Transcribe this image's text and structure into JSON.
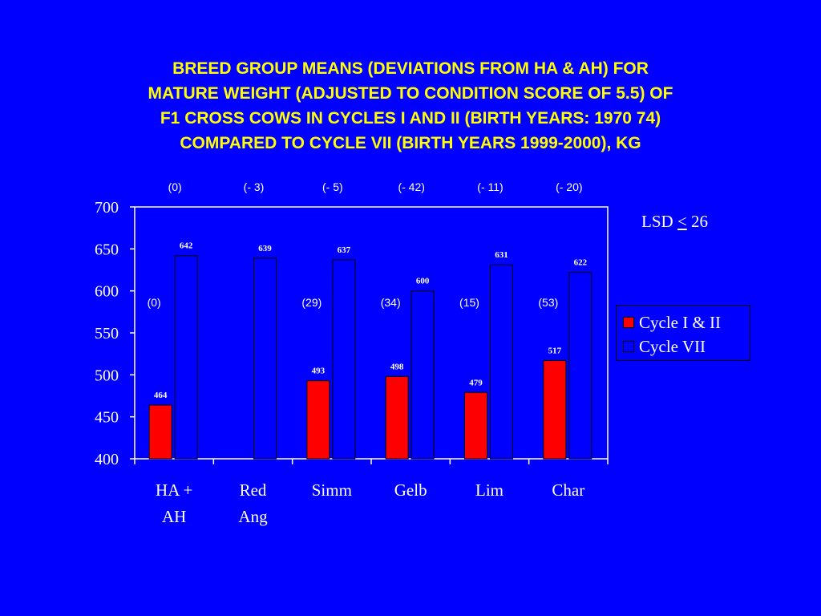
{
  "title_lines": [
    "BREED GROUP MEANS (DEVIATIONS FROM HA & AH) FOR",
    "MATURE WEIGHT (ADJUSTED TO CONDITION SCORE OF 5.5) OF",
    "F1 CROSS COWS IN CYCLES I AND II (BIRTH YEARS: 1970 74)",
    "COMPARED TO CYCLE VII (BIRTH YEARS 1999-2000), KG"
  ],
  "lsd": {
    "prefix": "LSD ",
    "symbol": "<",
    "value": " 26"
  },
  "legend": {
    "items": [
      {
        "label": "Cycle I & II",
        "color": "#ff0000"
      },
      {
        "label": "Cycle VII",
        "color": "#0000ff"
      }
    ]
  },
  "chart_data": {
    "type": "bar",
    "categories": [
      [
        "HA +",
        "AH"
      ],
      [
        "Red",
        "Ang"
      ],
      [
        "Simm"
      ],
      [
        "Gelb"
      ],
      [
        "Lim"
      ],
      [
        "Char"
      ]
    ],
    "series": [
      {
        "name": "Cycle I & II",
        "color": "#ff0000",
        "values": [
          464,
          null,
          493,
          498,
          479,
          517
        ]
      },
      {
        "name": "Cycle VII",
        "color": "#0000ff",
        "values": [
          642,
          639,
          637,
          600,
          631,
          622
        ]
      }
    ],
    "top_annotations": [
      "(0)",
      "(- 3)",
      "(- 5)",
      "(- 42)",
      "(- 11)",
      "(- 20)"
    ],
    "mid_annotations": [
      "(0)",
      "",
      "(29)",
      "(34)",
      "(15)",
      "(53)"
    ],
    "ylim": [
      400,
      700
    ],
    "yticks": [
      400,
      450,
      500,
      550,
      600,
      650,
      700
    ],
    "grid": false,
    "legend_position": "right"
  }
}
